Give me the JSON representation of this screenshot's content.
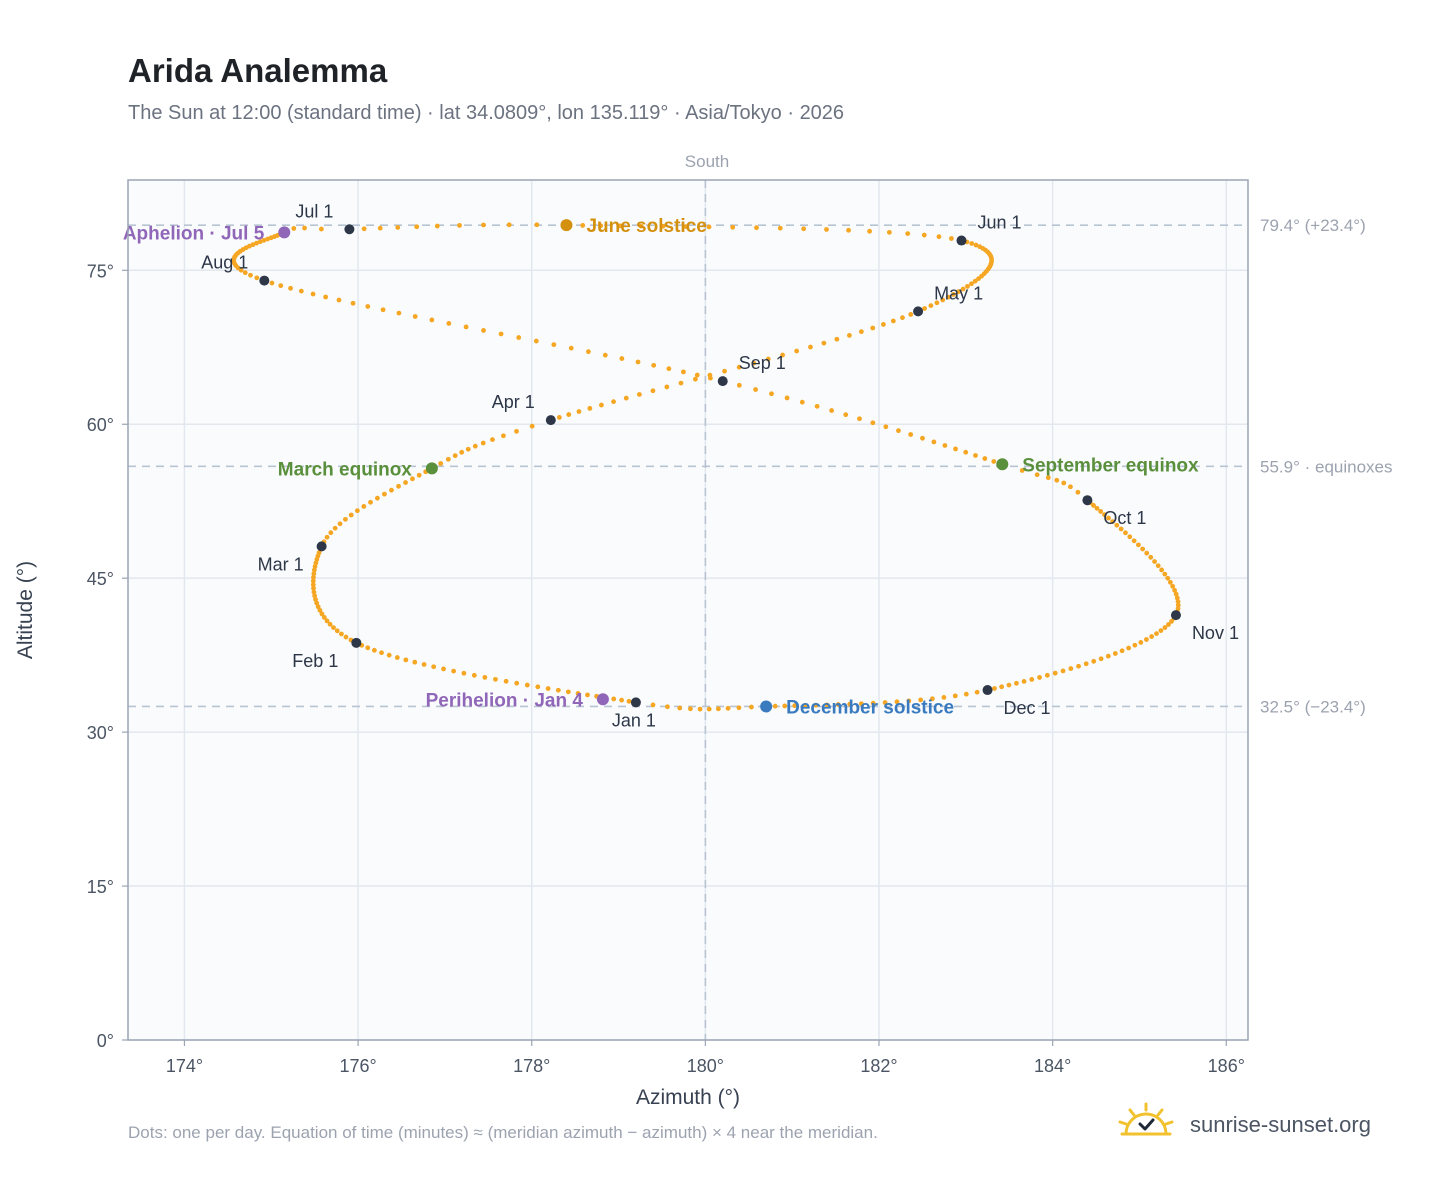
{
  "title": "Arida Analemma",
  "subtitle": "The Sun at 12:00 (standard time) · lat 34.0809°, lon 135.119° · Asia/Tokyo · 2026",
  "footer": "Dots: one per day. Equation of time (minutes) ≈ (meridian azimuth − azimuth) × 4 near the meridian.",
  "brand": "sunrise-sunset.org",
  "colors": {
    "path": "#f5a623",
    "month_marker": "#2d3748",
    "solstice_june": "#d4900f",
    "solstice_december": "#3a7bbf",
    "equinox": "#5a8f3c",
    "apsis": "#9067b8",
    "reference_line": "#b8c4d2",
    "plot_bg": "#f9fbfd",
    "grid": "#e3e8ee",
    "frame": "#9aa5b4"
  },
  "chart_data": {
    "type": "scatter",
    "xlabel": "Azimuth (°)",
    "ylabel": "Altitude (°)",
    "xlim": [
      173.35,
      186.25
    ],
    "ylim": [
      0,
      83.8
    ],
    "xticks": [
      174,
      176,
      178,
      180,
      182,
      184,
      186
    ],
    "xtick_labels": [
      "174°",
      "176°",
      "178°",
      "180°",
      "182°",
      "184°",
      "186°"
    ],
    "yticks": [
      0,
      15,
      30,
      45,
      60,
      75
    ],
    "ytick_labels": [
      "0°",
      "15°",
      "30°",
      "45°",
      "60°",
      "75°"
    ],
    "grid": true,
    "meridian": {
      "azimuth": 180,
      "label": "South"
    },
    "reference_lines": [
      {
        "altitude": 79.4,
        "label": "79.4° (+23.4°)"
      },
      {
        "altitude": 55.9,
        "label": "55.9° · equinoxes"
      },
      {
        "altitude": 32.5,
        "label": "32.5° (−23.4°)"
      }
    ],
    "analemma_anchors": [
      {
        "day": 0,
        "az": 179.2,
        "alt": 32.9
      },
      {
        "day": 31,
        "az": 175.98,
        "alt": 38.7
      },
      {
        "day": 59,
        "az": 175.58,
        "alt": 48.1
      },
      {
        "day": 78,
        "az": 176.85,
        "alt": 55.7
      },
      {
        "day": 90,
        "az": 178.22,
        "alt": 60.4
      },
      {
        "day": 120,
        "az": 182.45,
        "alt": 71.0
      },
      {
        "day": 151,
        "az": 182.95,
        "alt": 77.9
      },
      {
        "day": 171,
        "az": 178.4,
        "alt": 79.4
      },
      {
        "day": 181,
        "az": 175.9,
        "alt": 79.0
      },
      {
        "day": 185,
        "az": 175.15,
        "alt": 78.7
      },
      {
        "day": 212,
        "az": 174.92,
        "alt": 74.0
      },
      {
        "day": 243,
        "az": 180.2,
        "alt": 64.2
      },
      {
        "day": 265,
        "az": 183.42,
        "alt": 56.1
      },
      {
        "day": 273,
        "az": 184.4,
        "alt": 52.6
      },
      {
        "day": 304,
        "az": 185.42,
        "alt": 41.4
      },
      {
        "day": 334,
        "az": 183.25,
        "alt": 34.1
      },
      {
        "day": 354,
        "az": 180.7,
        "alt": 32.5
      },
      {
        "day": 365,
        "az": 179.2,
        "alt": 32.9
      }
    ],
    "month_markers": [
      {
        "label": "Jan 1",
        "az": 179.2,
        "alt": 32.9,
        "anchor": "below"
      },
      {
        "label": "Feb 1",
        "az": 175.98,
        "alt": 38.7,
        "anchor": "below-left"
      },
      {
        "label": "Mar 1",
        "az": 175.58,
        "alt": 48.1,
        "anchor": "below-left"
      },
      {
        "label": "Apr 1",
        "az": 178.22,
        "alt": 60.4,
        "anchor": "above-left"
      },
      {
        "label": "May 1",
        "az": 182.45,
        "alt": 71.0,
        "anchor": "above-right"
      },
      {
        "label": "Jun 1",
        "az": 182.95,
        "alt": 77.9,
        "anchor": "above-right"
      },
      {
        "label": "Jul 1",
        "az": 175.9,
        "alt": 79.0,
        "anchor": "above-left"
      },
      {
        "label": "Aug 1",
        "az": 174.92,
        "alt": 74.0,
        "anchor": "above-left"
      },
      {
        "label": "Sep 1",
        "az": 180.2,
        "alt": 64.2,
        "anchor": "above-right"
      },
      {
        "label": "Oct 1",
        "az": 184.4,
        "alt": 52.6,
        "anchor": "below-right"
      },
      {
        "label": "Nov 1",
        "az": 185.42,
        "alt": 41.4,
        "anchor": "below-right"
      },
      {
        "label": "Dec 1",
        "az": 183.25,
        "alt": 34.1,
        "anchor": "below-right"
      }
    ],
    "events": [
      {
        "label": "June solstice",
        "az": 178.4,
        "alt": 79.4,
        "color": "#d4900f",
        "anchor": "right"
      },
      {
        "label": "December solstice",
        "az": 180.7,
        "alt": 32.5,
        "color": "#3a7bbf",
        "anchor": "right"
      },
      {
        "label": "March equinox",
        "az": 176.85,
        "alt": 55.7,
        "color": "#5a8f3c",
        "anchor": "left"
      },
      {
        "label": "September equinox",
        "az": 183.42,
        "alt": 56.1,
        "color": "#5a8f3c",
        "anchor": "right"
      },
      {
        "label": "Aphelion · Jul 5",
        "az": 175.15,
        "alt": 78.7,
        "color": "#9067b8",
        "anchor": "left"
      },
      {
        "label": "Perihelion · Jan 4",
        "az": 178.82,
        "alt": 33.2,
        "color": "#9067b8",
        "anchor": "left"
      }
    ]
  }
}
